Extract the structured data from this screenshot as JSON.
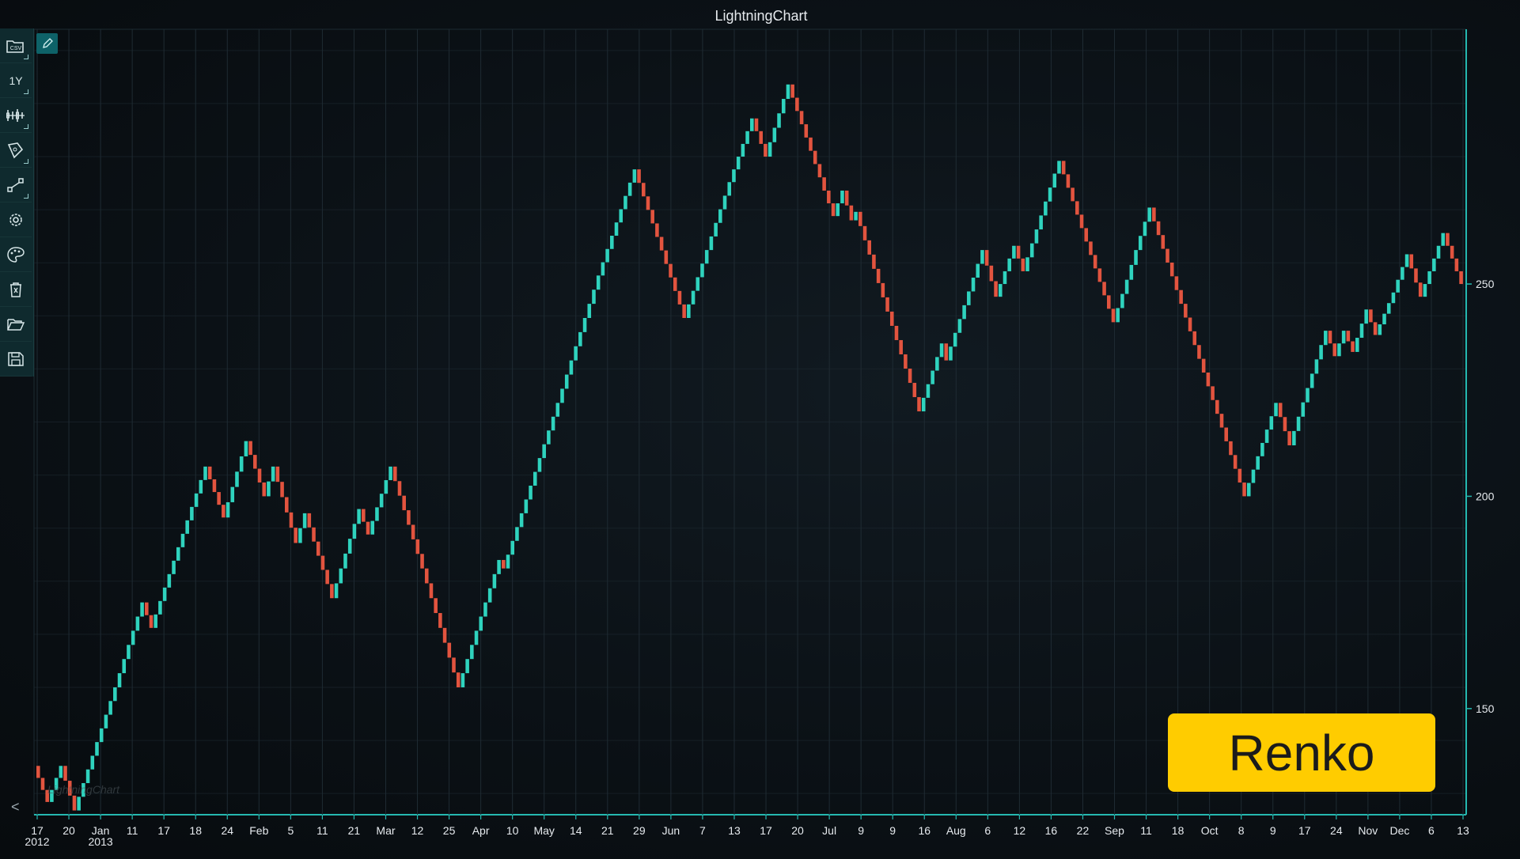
{
  "chart_data": {
    "type": "renko",
    "title": "LightningChart",
    "brick_size": 3.3,
    "colors": {
      "up": "#2fd3be",
      "down": "#e2543f",
      "axis": "#25b8b0"
    },
    "ylim": [
      125,
      310
    ],
    "y_ticks": [
      150,
      200,
      250
    ],
    "x_tick_labels": [
      {
        "label": "17",
        "sub": "2012"
      },
      {
        "label": "20"
      },
      {
        "label": "Jan",
        "sub": "2013"
      },
      {
        "label": "11"
      },
      {
        "label": "17"
      },
      {
        "label": "18"
      },
      {
        "label": "24"
      },
      {
        "label": "Feb"
      },
      {
        "label": "5"
      },
      {
        "label": "11"
      },
      {
        "label": "21"
      },
      {
        "label": "Mar"
      },
      {
        "label": "12"
      },
      {
        "label": "25"
      },
      {
        "label": "Apr"
      },
      {
        "label": "10"
      },
      {
        "label": "May"
      },
      {
        "label": "14"
      },
      {
        "label": "21"
      },
      {
        "label": "29"
      },
      {
        "label": "Jun"
      },
      {
        "label": "7"
      },
      {
        "label": "13"
      },
      {
        "label": "17"
      },
      {
        "label": "20"
      },
      {
        "label": "Jul"
      },
      {
        "label": "9"
      },
      {
        "label": "9"
      },
      {
        "label": "16"
      },
      {
        "label": "Aug"
      },
      {
        "label": "6"
      },
      {
        "label": "12"
      },
      {
        "label": "16"
      },
      {
        "label": "22"
      },
      {
        "label": "Sep"
      },
      {
        "label": "11"
      },
      {
        "label": "18"
      },
      {
        "label": "Oct"
      },
      {
        "label": "8"
      },
      {
        "label": "9"
      },
      {
        "label": "17"
      },
      {
        "label": "24"
      },
      {
        "label": "Nov"
      },
      {
        "label": "Dec"
      },
      {
        "label": "6"
      },
      {
        "label": "13"
      }
    ],
    "price_path": [
      136.5,
      128,
      136.5,
      126,
      155,
      175,
      169,
      207,
      195,
      213,
      200,
      207,
      189,
      196,
      176,
      197,
      191,
      207,
      183,
      155,
      185,
      183,
      222,
      252,
      277,
      242,
      274,
      289,
      280,
      297,
      272,
      266,
      272,
      265,
      267,
      220,
      236,
      232,
      258,
      247,
      259,
      253,
      276,
      279,
      241,
      251,
      258,
      268,
      200,
      222,
      212,
      239,
      233,
      239,
      234,
      244,
      238,
      243,
      248,
      257,
      247,
      262,
      250
    ]
  },
  "toolbar": [
    {
      "name": "csv-open-icon",
      "label": "CSV"
    },
    {
      "name": "range-1y-button",
      "label": "1Y"
    },
    {
      "name": "series-type-icon",
      "label": ""
    },
    {
      "name": "drawing-tools-icon",
      "label": ""
    },
    {
      "name": "indicators-icon",
      "label": ""
    },
    {
      "name": "settings-icon",
      "label": ""
    },
    {
      "name": "theme-palette-icon",
      "label": ""
    },
    {
      "name": "delete-drawings-icon",
      "label": ""
    },
    {
      "name": "open-folder-icon",
      "label": ""
    },
    {
      "name": "save-icon",
      "label": ""
    }
  ],
  "badge": {
    "text": "Renko"
  },
  "watermark": {
    "text": "LightningChart"
  }
}
